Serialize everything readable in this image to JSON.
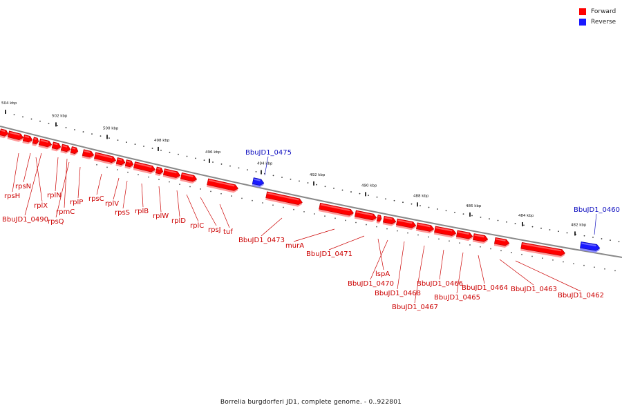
{
  "colors": {
    "forward": "#ff0000",
    "forward_label": "#cc0000",
    "reverse": "#1a1aff",
    "reverse_label": "#1010c0",
    "backbone": "#888888"
  },
  "legend": {
    "forward": "Forward",
    "reverse": "Reverse"
  },
  "footer": "Borrelia burgdorferi JD1, complete genome. - 0..922801",
  "genome": {
    "ticks": [
      {
        "label": "504 kbp"
      },
      {
        "label": "502 kbp"
      },
      {
        "label": "500 kbp"
      },
      {
        "label": "498 kbp"
      },
      {
        "label": "496 kbp"
      },
      {
        "label": "494 kbp"
      },
      {
        "label": "492 kbp"
      },
      {
        "label": "490 kbp"
      },
      {
        "label": "488 kbp"
      },
      {
        "label": "486 kbp"
      },
      {
        "label": "484 kbp"
      },
      {
        "label": "482 kbp"
      }
    ],
    "genes": [
      {
        "name": "rpsN",
        "strand": "forward"
      },
      {
        "name": "rpsH",
        "strand": "forward"
      },
      {
        "name": "rplX",
        "strand": "forward"
      },
      {
        "name": "BbuJD1_0490",
        "strand": "forward"
      },
      {
        "name": "rplN",
        "strand": "forward"
      },
      {
        "name": "rpmC",
        "strand": "forward"
      },
      {
        "name": "rpsQ",
        "strand": "forward"
      },
      {
        "name": "rplP",
        "strand": "forward"
      },
      {
        "name": "rpsC",
        "strand": "forward"
      },
      {
        "name": "rplV",
        "strand": "forward"
      },
      {
        "name": "rpsS",
        "strand": "forward"
      },
      {
        "name": "rplB",
        "strand": "forward"
      },
      {
        "name": "rplW",
        "strand": "forward"
      },
      {
        "name": "rplD",
        "strand": "forward"
      },
      {
        "name": "rplC",
        "strand": "forward"
      },
      {
        "name": "rpsJ",
        "strand": "forward"
      },
      {
        "name": "tuf",
        "strand": "forward"
      },
      {
        "name": "BbuJD1_0475",
        "strand": "reverse"
      },
      {
        "name": "BbuJD1_0473",
        "strand": "forward"
      },
      {
        "name": "murA",
        "strand": "forward"
      },
      {
        "name": "BbuJD1_0471",
        "strand": "forward"
      },
      {
        "name": "lspA",
        "strand": "forward"
      },
      {
        "name": "BbuJD1_0470",
        "strand": "forward"
      },
      {
        "name": "BbuJD1_0468",
        "strand": "forward"
      },
      {
        "name": "BbuJD1_0467",
        "strand": "forward"
      },
      {
        "name": "BbuJD1_0466",
        "strand": "forward"
      },
      {
        "name": "BbuJD1_0465",
        "strand": "forward"
      },
      {
        "name": "BbuJD1_0464",
        "strand": "forward"
      },
      {
        "name": "BbuJD1_0463",
        "strand": "forward"
      },
      {
        "name": "BbuJD1_0462",
        "strand": "forward"
      },
      {
        "name": "BbuJD1_0460",
        "strand": "reverse"
      }
    ]
  }
}
